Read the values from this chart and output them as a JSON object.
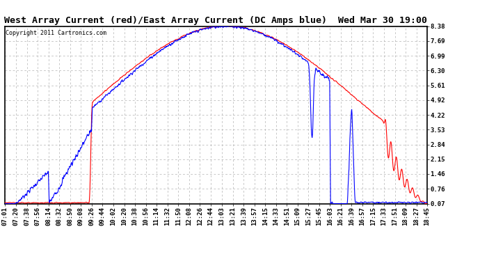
{
  "title": "West Array Current (red)/East Array Current (DC Amps blue)  Wed Mar 30 19:00",
  "copyright": "Copyright 2011 Cartronics.com",
  "ylabel_right": [
    "8.38",
    "7.69",
    "6.99",
    "6.30",
    "5.61",
    "4.92",
    "4.22",
    "3.53",
    "2.84",
    "2.15",
    "1.46",
    "0.76",
    "0.07"
  ],
  "yticks": [
    8.38,
    7.69,
    6.99,
    6.3,
    5.61,
    4.92,
    4.22,
    3.53,
    2.84,
    2.15,
    1.46,
    0.76,
    0.07
  ],
  "ylim": [
    0.07,
    8.38
  ],
  "xtick_labels": [
    "07:01",
    "07:20",
    "07:38",
    "07:56",
    "08:14",
    "08:32",
    "08:50",
    "09:08",
    "09:26",
    "09:44",
    "10:02",
    "10:20",
    "10:38",
    "10:56",
    "11:14",
    "11:32",
    "11:50",
    "12:08",
    "12:26",
    "12:44",
    "13:03",
    "13:21",
    "13:39",
    "13:57",
    "14:15",
    "14:33",
    "14:51",
    "15:09",
    "15:27",
    "15:45",
    "16:03",
    "16:21",
    "16:39",
    "16:57",
    "17:15",
    "17:33",
    "17:51",
    "18:09",
    "18:27",
    "18:45"
  ],
  "background_color": "#ffffff",
  "grid_color": "#b0b0b0",
  "line_color_red": "#ff0000",
  "line_color_blue": "#0000ff",
  "title_fontsize": 9.5,
  "tick_fontsize": 6.5,
  "copyright_fontsize": 6.0
}
